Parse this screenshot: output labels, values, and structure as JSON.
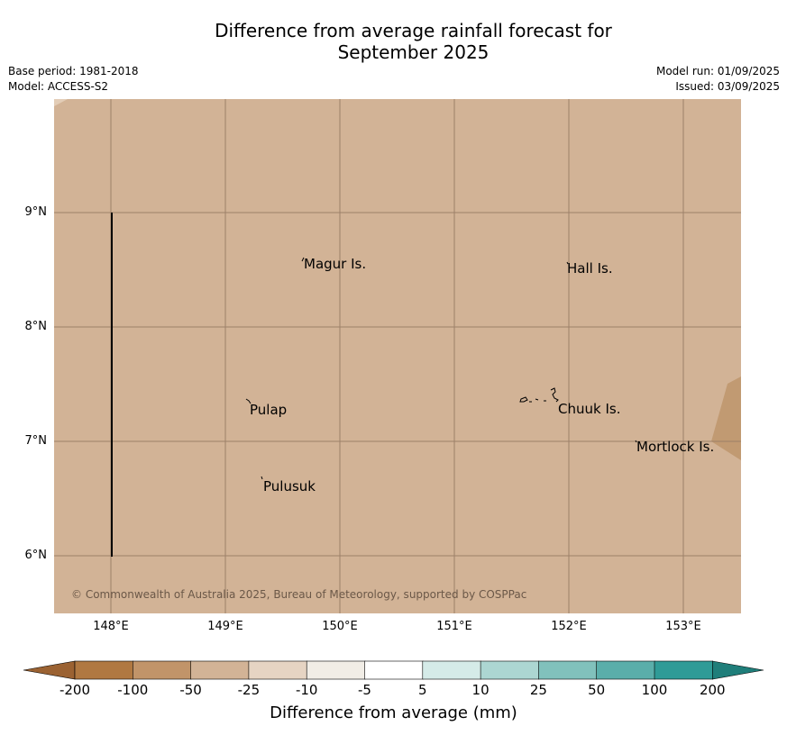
{
  "title": "Difference from average rainfall forecast for",
  "title_line2": "September 2025",
  "meta_left": {
    "base_period": "Base period: 1981-2018",
    "model": "Model: ACCESS-S2"
  },
  "meta_right": {
    "model_run": "Model run: 01/09/2025",
    "issued": "Issued: 03/09/2025"
  },
  "map": {
    "background_color": "#d2b396",
    "drier_patch_color": "#c19a72",
    "lat_labels": [
      "9°N",
      "8°N",
      "7°N",
      "6°N"
    ],
    "lon_labels": [
      "148°E",
      "149°E",
      "150°E",
      "151°E",
      "152°E",
      "153°E"
    ],
    "places": [
      {
        "name": "Magur Is."
      },
      {
        "name": "Hall Is."
      },
      {
        "name": "Pulap"
      },
      {
        "name": "Chuuk Is."
      },
      {
        "name": "Mortlock Is."
      },
      {
        "name": "Pulusuk"
      }
    ],
    "copyright": "© Commonwealth of Australia 2025, Bureau of Meteorology, supported by COSPPac"
  },
  "colorbar": {
    "ticks": [
      "-200",
      "-100",
      "-50",
      "-25",
      "-10",
      "-5",
      "5",
      "10",
      "25",
      "50",
      "100",
      "200"
    ],
    "colors": [
      "#9b6232",
      "#b07841",
      "#c19469",
      "#d2b396",
      "#e6d4c3",
      "#f1ede6",
      "#ffffff",
      "#d5ebe8",
      "#acd6d2",
      "#81c1bc",
      "#5aaeaa",
      "#2f9b97",
      "#1f7e7a"
    ],
    "label": "Difference from average (mm)"
  }
}
